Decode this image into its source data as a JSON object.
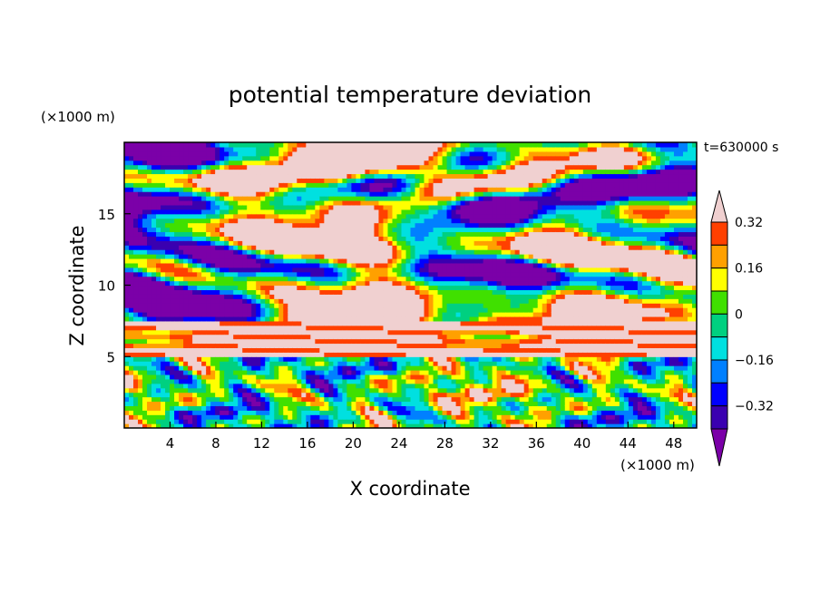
{
  "chart_data": {
    "type": "heatmap",
    "title": "potential temperature deviation",
    "xlabel": "X coordinate",
    "ylabel": "Z coordinate",
    "x_unit": "(×1000 m)",
    "y_unit": "(×1000 m)",
    "time_label": "t=630000 s",
    "xlim": [
      0,
      50
    ],
    "ylim": [
      0,
      20
    ],
    "x_ticks": [
      4,
      8,
      12,
      16,
      20,
      24,
      28,
      32,
      36,
      40,
      44,
      48
    ],
    "y_ticks": [
      5,
      10,
      15
    ],
    "colorbar": {
      "levels": [
        -0.4,
        -0.32,
        -0.24,
        -0.16,
        -0.08,
        0,
        0.08,
        0.16,
        0.24,
        0.32,
        0.4
      ],
      "labeled_levels": [
        0.32,
        0.16,
        0,
        -0.16,
        -0.32
      ],
      "labels": [
        "0.32",
        "0.16",
        "0",
        "−0.16",
        "−0.32"
      ],
      "colors": [
        "#7b00a8",
        "#3a00b0",
        "#0000ff",
        "#0080ff",
        "#00e0e0",
        "#00d080",
        "#40e000",
        "#ffff00",
        "#ffa000",
        "#ff4000",
        "#f0d0d0"
      ],
      "extend": "both"
    },
    "regions": [
      {
        "z_range": [
          0,
          5
        ],
        "pattern": "wavy convective cells",
        "dominant_values": [
          -0.3,
          0.3
        ]
      },
      {
        "z_range": [
          5,
          7.5
        ],
        "pattern": "strong positive banded layer",
        "dominant_values": [
          0.3,
          0.4
        ]
      },
      {
        "z_range": [
          7.5,
          20
        ],
        "pattern": "large patches",
        "dominant_values": [
          -0.4,
          0.4
        ]
      }
    ]
  },
  "colors": {
    "background": "#ffffff",
    "frame": "#000000"
  }
}
